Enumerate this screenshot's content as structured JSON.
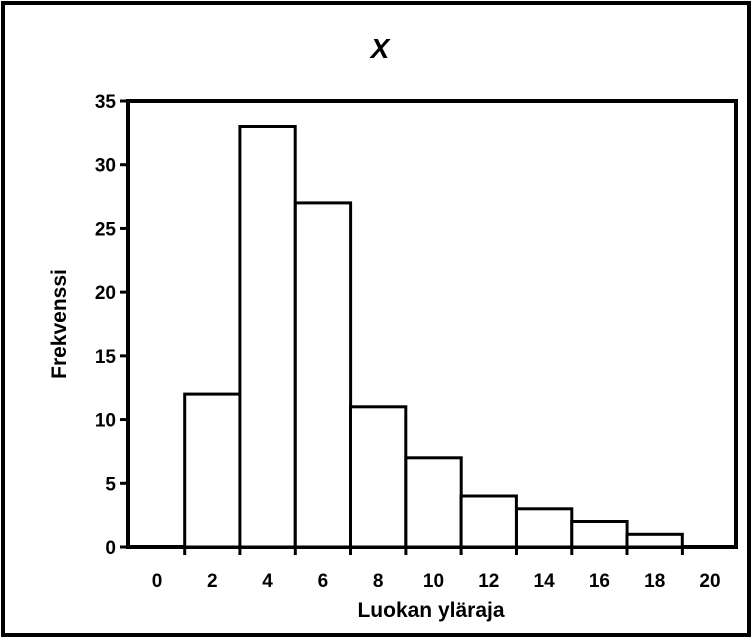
{
  "chart_data": {
    "type": "bar",
    "title": "X",
    "xlabel": "Luokan yläraja",
    "ylabel": "Frekvenssi",
    "categories": [
      "0",
      "2",
      "4",
      "6",
      "8",
      "10",
      "12",
      "14",
      "16",
      "18",
      "20"
    ],
    "values": [
      0,
      12,
      33,
      27,
      11,
      7,
      4,
      3,
      2,
      1,
      0
    ],
    "ylim": [
      0,
      35
    ],
    "yticks": [
      "0",
      "5",
      "10",
      "15",
      "20",
      "25",
      "30",
      "35"
    ],
    "grid": false,
    "legend": "none",
    "colors": {
      "bar_fill": "#ffffff",
      "stroke": "#000000",
      "background": "#ffffff"
    }
  }
}
